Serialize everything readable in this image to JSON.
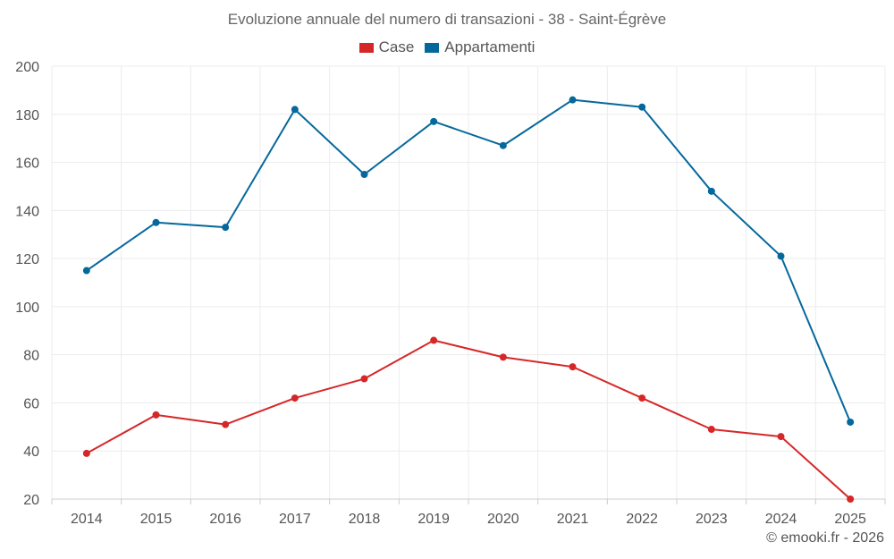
{
  "chart_data": {
    "type": "line",
    "title": "Evoluzione annuale del numero di transazioni - 38 - Saint-Égrève",
    "categories": [
      "2014",
      "2015",
      "2016",
      "2017",
      "2018",
      "2019",
      "2020",
      "2021",
      "2022",
      "2023",
      "2024",
      "2025"
    ],
    "series": [
      {
        "name": "Case",
        "color": "#d62728",
        "values": [
          39,
          55,
          51,
          62,
          70,
          86,
          79,
          75,
          62,
          49,
          46,
          20
        ]
      },
      {
        "name": "Appartamenti",
        "color": "#05689c",
        "values": [
          115,
          135,
          133,
          182,
          155,
          177,
          167,
          186,
          183,
          148,
          121,
          52
        ]
      }
    ],
    "ylim": [
      20,
      200
    ],
    "yticks": [
      20,
      40,
      60,
      80,
      100,
      120,
      140,
      160,
      180,
      200
    ],
    "grid": true,
    "legend_position": "top-center",
    "xlabel": "",
    "ylabel": ""
  },
  "credit": "© emooki.fr - 2026"
}
